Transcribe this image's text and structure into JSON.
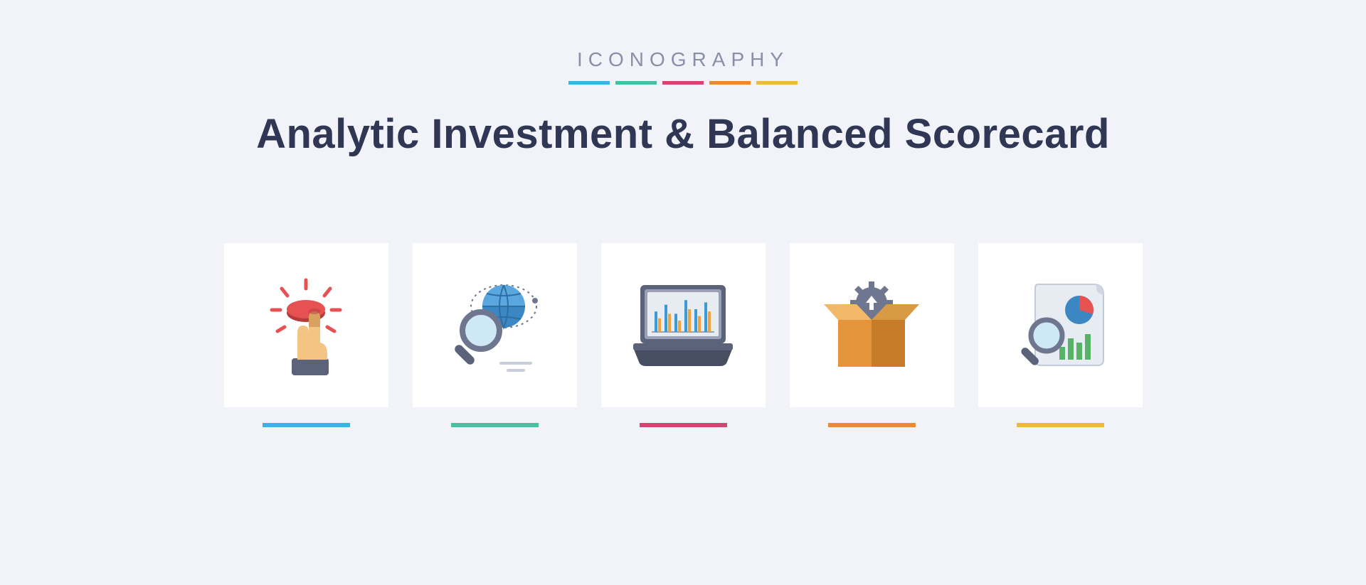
{
  "header": {
    "eyebrow": "ICONOGRAPHY",
    "title": "Analytic Investment & Balanced Scorecard",
    "stripe_colors": [
      "#36b6e8",
      "#47bfa3",
      "#d6436f",
      "#e98b2f",
      "#eeb838"
    ],
    "title_color": "#303754",
    "eyebrow_color": "#8a8fa8"
  },
  "page": {
    "background_color": "#f1f3f9",
    "card_background": "#ffffff"
  },
  "icons": [
    {
      "name": "touch-click-icon",
      "underline_color": "#36b6e8",
      "palette": {
        "button": "#e65151",
        "button_shadow": "#b83b3b",
        "hand": "#f3c483",
        "hand_shadow": "#d9a15f",
        "sleeve": "#5a6379",
        "rays": "#e65151"
      }
    },
    {
      "name": "globe-search-icon",
      "underline_color": "#47bfa3",
      "palette": {
        "globe": "#3a87c4",
        "globe_light": "#5aa6de",
        "orbit": "#6f7690",
        "orbit_dot": "#6f7690",
        "lens_ring": "#6f7690",
        "lens_glass": "#cfe8f6",
        "handle": "#5a6379",
        "base_lines": "#c9cedd"
      }
    },
    {
      "name": "laptop-chart-icon",
      "underline_color": "#d6436f",
      "palette": {
        "body": "#5a6379",
        "body_dark": "#474e61",
        "screen_border": "#9aa1b6",
        "screen": "#e7ecf2",
        "bar_a": "#3c9bd6",
        "bar_b": "#f0a23e",
        "axis": "#98a0b4"
      },
      "chart": {
        "type": "bar",
        "pairs": [
          [
            9,
            6
          ],
          [
            12,
            8
          ],
          [
            8,
            5
          ],
          [
            14,
            10
          ],
          [
            10,
            7
          ],
          [
            13,
            9
          ]
        ]
      }
    },
    {
      "name": "box-gear-icon",
      "underline_color": "#e98b2f",
      "palette": {
        "box_front": "#e4953c",
        "box_front_dark": "#c77c2b",
        "box_inside": "#7a5223",
        "flap": "#f2b869",
        "flap_dark": "#d99a45",
        "gear": "#6f7690",
        "arrow": "#ffffff"
      }
    },
    {
      "name": "report-analysis-icon",
      "underline_color": "#eeb838",
      "palette": {
        "paper": "#e7ecf2",
        "paper_stroke": "#c3cad8",
        "curl": "#cfd6e2",
        "pie_a": "#e65151",
        "pie_b": "#3a87c4",
        "bars": [
          "#58b368",
          "#58b368",
          "#58b368",
          "#58b368"
        ],
        "lens_ring": "#6f7690",
        "lens_glass": "#cfe8f6",
        "handle": "#5a6379"
      },
      "chart": {
        "type": "bar",
        "values": [
          6,
          10,
          8,
          12
        ]
      }
    }
  ]
}
